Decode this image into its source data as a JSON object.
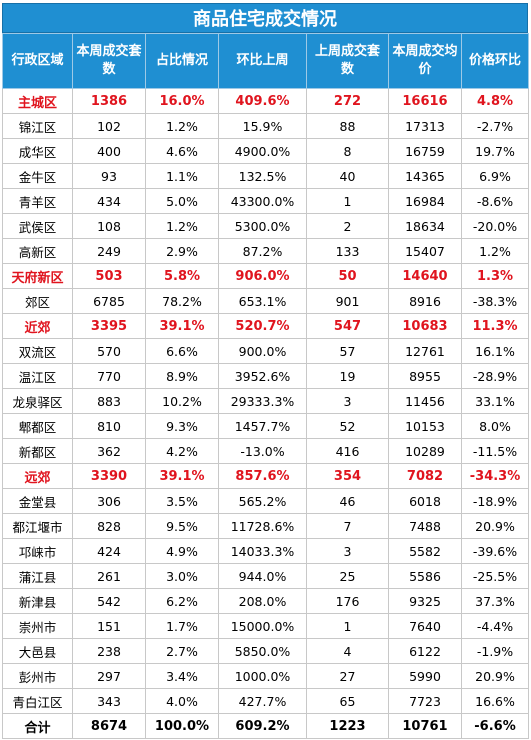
{
  "title": "商品住宅成交情况",
  "headers": [
    "行政区域",
    "本周成交套数",
    "占比情况",
    "环比上周",
    "上周成交套数",
    "本周成交均价",
    "价格环比"
  ],
  "rows": [
    {
      "name": "主城区",
      "sets": "1386",
      "share": "16.0%",
      "wow": "409.6%",
      "last": "272",
      "price": "16616",
      "price_wow": "4.8%",
      "highlight": true
    },
    {
      "name": "锦江区",
      "sets": "102",
      "share": "1.2%",
      "wow": "15.9%",
      "last": "88",
      "price": "17313",
      "price_wow": "-2.7%"
    },
    {
      "name": "成华区",
      "sets": "400",
      "share": "4.6%",
      "wow": "4900.0%",
      "last": "8",
      "price": "16759",
      "price_wow": "19.7%"
    },
    {
      "name": "金牛区",
      "sets": "93",
      "share": "1.1%",
      "wow": "132.5%",
      "last": "40",
      "price": "14365",
      "price_wow": "6.9%"
    },
    {
      "name": "青羊区",
      "sets": "434",
      "share": "5.0%",
      "wow": "43300.0%",
      "last": "1",
      "price": "16984",
      "price_wow": "-8.6%"
    },
    {
      "name": "武侯区",
      "sets": "108",
      "share": "1.2%",
      "wow": "5300.0%",
      "last": "2",
      "price": "18634",
      "price_wow": "-20.0%"
    },
    {
      "name": "高新区",
      "sets": "249",
      "share": "2.9%",
      "wow": "87.2%",
      "last": "133",
      "price": "15407",
      "price_wow": "1.2%"
    },
    {
      "name": "天府新区",
      "sets": "503",
      "share": "5.8%",
      "wow": "906.0%",
      "last": "50",
      "price": "14640",
      "price_wow": "1.3%",
      "highlight": true
    },
    {
      "name": "郊区",
      "sets": "6785",
      "share": "78.2%",
      "wow": "653.1%",
      "last": "901",
      "price": "8916",
      "price_wow": "-38.3%"
    },
    {
      "name": "近郊",
      "sets": "3395",
      "share": "39.1%",
      "wow": "520.7%",
      "last": "547",
      "price": "10683",
      "price_wow": "11.3%",
      "highlight": true
    },
    {
      "name": "双流区",
      "sets": "570",
      "share": "6.6%",
      "wow": "900.0%",
      "last": "57",
      "price": "12761",
      "price_wow": "16.1%"
    },
    {
      "name": "温江区",
      "sets": "770",
      "share": "8.9%",
      "wow": "3952.6%",
      "last": "19",
      "price": "8955",
      "price_wow": "-28.9%"
    },
    {
      "name": "龙泉驿区",
      "sets": "883",
      "share": "10.2%",
      "wow": "29333.3%",
      "last": "3",
      "price": "11456",
      "price_wow": "33.1%"
    },
    {
      "name": "郫都区",
      "sets": "810",
      "share": "9.3%",
      "wow": "1457.7%",
      "last": "52",
      "price": "10153",
      "price_wow": "8.0%"
    },
    {
      "name": "新都区",
      "sets": "362",
      "share": "4.2%",
      "wow": "-13.0%",
      "last": "416",
      "price": "10289",
      "price_wow": "-11.5%"
    },
    {
      "name": "远郊",
      "sets": "3390",
      "share": "39.1%",
      "wow": "857.6%",
      "last": "354",
      "price": "7082",
      "price_wow": "-34.3%",
      "highlight": true
    },
    {
      "name": "金堂县",
      "sets": "306",
      "share": "3.5%",
      "wow": "565.2%",
      "last": "46",
      "price": "6018",
      "price_wow": "-18.9%"
    },
    {
      "name": "都江堰市",
      "sets": "828",
      "share": "9.5%",
      "wow": "11728.6%",
      "last": "7",
      "price": "7488",
      "price_wow": "20.9%"
    },
    {
      "name": "邛崃市",
      "sets": "424",
      "share": "4.9%",
      "wow": "14033.3%",
      "last": "3",
      "price": "5582",
      "price_wow": "-39.6%"
    },
    {
      "name": "蒲江县",
      "sets": "261",
      "share": "3.0%",
      "wow": "944.0%",
      "last": "25",
      "price": "5586",
      "price_wow": "-25.5%"
    },
    {
      "name": "新津县",
      "sets": "542",
      "share": "6.2%",
      "wow": "208.0%",
      "last": "176",
      "price": "9325",
      "price_wow": "37.3%"
    },
    {
      "name": "崇州市",
      "sets": "151",
      "share": "1.7%",
      "wow": "15000.0%",
      "last": "1",
      "price": "7640",
      "price_wow": "-4.4%"
    },
    {
      "name": "大邑县",
      "sets": "238",
      "share": "2.7%",
      "wow": "5850.0%",
      "last": "4",
      "price": "6122",
      "price_wow": "-1.9%"
    },
    {
      "name": "彭州市",
      "sets": "297",
      "share": "3.4%",
      "wow": "1000.0%",
      "last": "27",
      "price": "5990",
      "price_wow": "20.9%"
    },
    {
      "name": "青白江区",
      "sets": "343",
      "share": "4.0%",
      "wow": "427.7%",
      "last": "65",
      "price": "7723",
      "price_wow": "16.6%"
    }
  ],
  "total": {
    "name": "合计",
    "sets": "8674",
    "share": "100.0%",
    "wow": "609.2%",
    "last": "1223",
    "price": "10761",
    "price_wow": "-6.6%"
  }
}
